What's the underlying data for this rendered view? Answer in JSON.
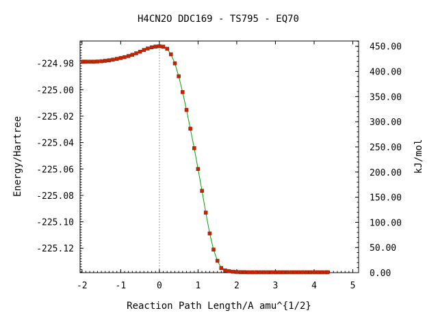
{
  "chart_data": {
    "type": "line",
    "title": "H4CN2O   DDC169 - TS795 - EQ70",
    "xlabel": "Reaction Path Length/A amu^{1/2}",
    "ylabel": "Energy/Hartree",
    "y2label": "kJ/mol",
    "xlim": [
      -2.05,
      5.15
    ],
    "ylim": [
      -225.1385,
      -224.9631
    ],
    "y2lim": [
      0.0,
      460.5
    ],
    "xticks": [
      -2,
      -1,
      0,
      1,
      2,
      3,
      4,
      5
    ],
    "xtick_labels": [
      "-2",
      "-1",
      "0",
      "1",
      "2",
      "3",
      "4",
      "5"
    ],
    "yticks": [
      -224.98,
      -225.0,
      -225.02,
      -225.04,
      -225.06,
      -225.08,
      -225.1,
      -225.12
    ],
    "ytick_labels": [
      "-224.98",
      "-225.00",
      "-225.02",
      "-225.04",
      "-225.06",
      "-225.08",
      "-225.10",
      "-225.12"
    ],
    "y2ticks": [
      0,
      50,
      100,
      150,
      200,
      250,
      300,
      350,
      400,
      450
    ],
    "y2tick_labels": [
      "0.00",
      "50.00",
      "100.00",
      "150.00",
      "200.00",
      "250.00",
      "300.00",
      "350.00",
      "400.00",
      "450.00"
    ],
    "ts_x": 0.0,
    "grid": false,
    "colors": {
      "line": "#00a000",
      "marker": "#cc2200",
      "ts_line": "#999999"
    },
    "series": [
      {
        "x": [
          -1.98,
          -1.9,
          -1.8,
          -1.7,
          -1.6,
          -1.5,
          -1.4,
          -1.3,
          -1.2,
          -1.1,
          -1.0,
          -0.9,
          -0.8,
          -0.7,
          -0.6,
          -0.5,
          -0.4,
          -0.3,
          -0.2,
          -0.1,
          0.0,
          0.1,
          0.2,
          0.3,
          0.4,
          0.5,
          0.6,
          0.7,
          0.8,
          0.9,
          1.0,
          1.1,
          1.2,
          1.3,
          1.4,
          1.5,
          1.6,
          1.7,
          1.8,
          1.9,
          2.0,
          2.1,
          2.2,
          2.3,
          2.4,
          2.5,
          2.6,
          2.7,
          2.8,
          2.9,
          3.0,
          3.1,
          3.2,
          3.3,
          3.4,
          3.5,
          3.6,
          3.7,
          3.8,
          3.9,
          4.0,
          4.1,
          4.2,
          4.3,
          4.35
        ],
        "y": [
          -224.9787,
          -224.9787,
          -224.9787,
          -224.9787,
          -224.9786,
          -224.9784,
          -224.9781,
          -224.9777,
          -224.9772,
          -224.9766,
          -224.976,
          -224.9753,
          -224.9745,
          -224.9735,
          -224.9724,
          -224.9712,
          -224.9699,
          -224.9688,
          -224.9679,
          -224.9673,
          -224.9671,
          -224.9674,
          -224.969,
          -224.9732,
          -224.98,
          -224.9898,
          -225.0018,
          -225.0153,
          -225.0295,
          -225.0443,
          -225.06,
          -225.0765,
          -225.093,
          -225.1088,
          -225.121,
          -225.1295,
          -225.135,
          -225.1368,
          -225.1374,
          -225.1378,
          -225.138,
          -225.1381,
          -225.1381,
          -225.1382,
          -225.1382,
          -225.1382,
          -225.1382,
          -225.1382,
          -225.1382,
          -225.1382,
          -225.1382,
          -225.1382,
          -225.1382,
          -225.1382,
          -225.1382,
          -225.1382,
          -225.1382,
          -225.1382,
          -225.1382,
          -225.1382,
          -225.1382,
          -225.1382,
          -225.1382,
          -225.1382,
          -225.1382
        ]
      }
    ]
  }
}
